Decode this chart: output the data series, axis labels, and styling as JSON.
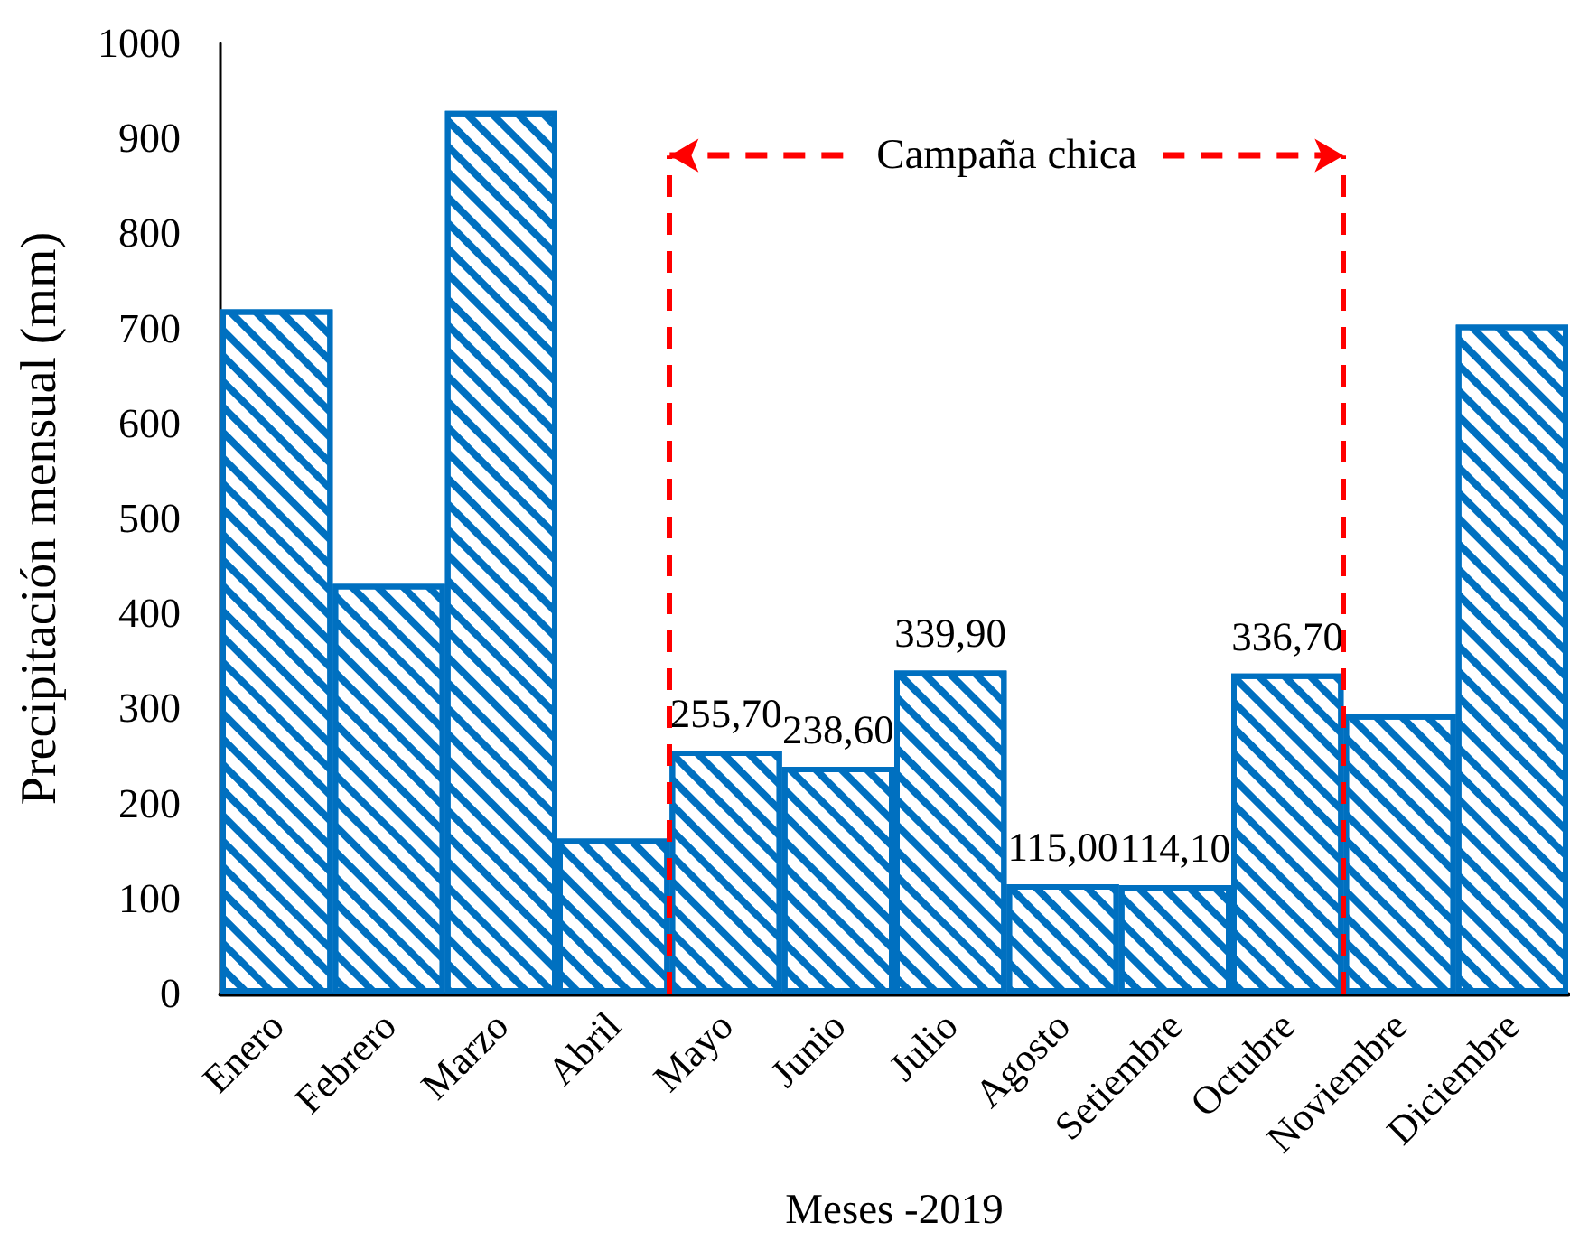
{
  "chart_data": {
    "type": "bar",
    "xlabel": "Meses -2019",
    "ylabel": "Precipitación mensual (mm)",
    "categories": [
      "Enero",
      "Febrero",
      "Marzo",
      "Abril",
      "Mayo",
      "Junio",
      "Julio",
      "Agosto",
      "Setiembre",
      "Octubre",
      "Noviembre",
      "Diciembre"
    ],
    "values": [
      720,
      431,
      929,
      163,
      255.7,
      238.6,
      339.9,
      115.0,
      114.1,
      336.7,
      294,
      704
    ],
    "value_labels": [
      null,
      null,
      null,
      null,
      "255,70",
      "238,60",
      "339,90",
      "115,00",
      "114,10",
      "336,70",
      null,
      null
    ],
    "color": "#0070c0",
    "ylim": [
      0,
      1000
    ],
    "yticks": [
      0,
      100,
      200,
      300,
      400,
      500,
      600,
      700,
      800,
      900,
      1000
    ],
    "ref_lines": [
      {
        "axis": "x",
        "value": "Mayo",
        "color": "#ff0000",
        "line_style": "dashed"
      },
      {
        "axis": "x",
        "value": "Noviembre",
        "color": "#ff0000",
        "line_style": "dashed"
      }
    ],
    "annotations": [
      "Campaña chica"
    ]
  }
}
